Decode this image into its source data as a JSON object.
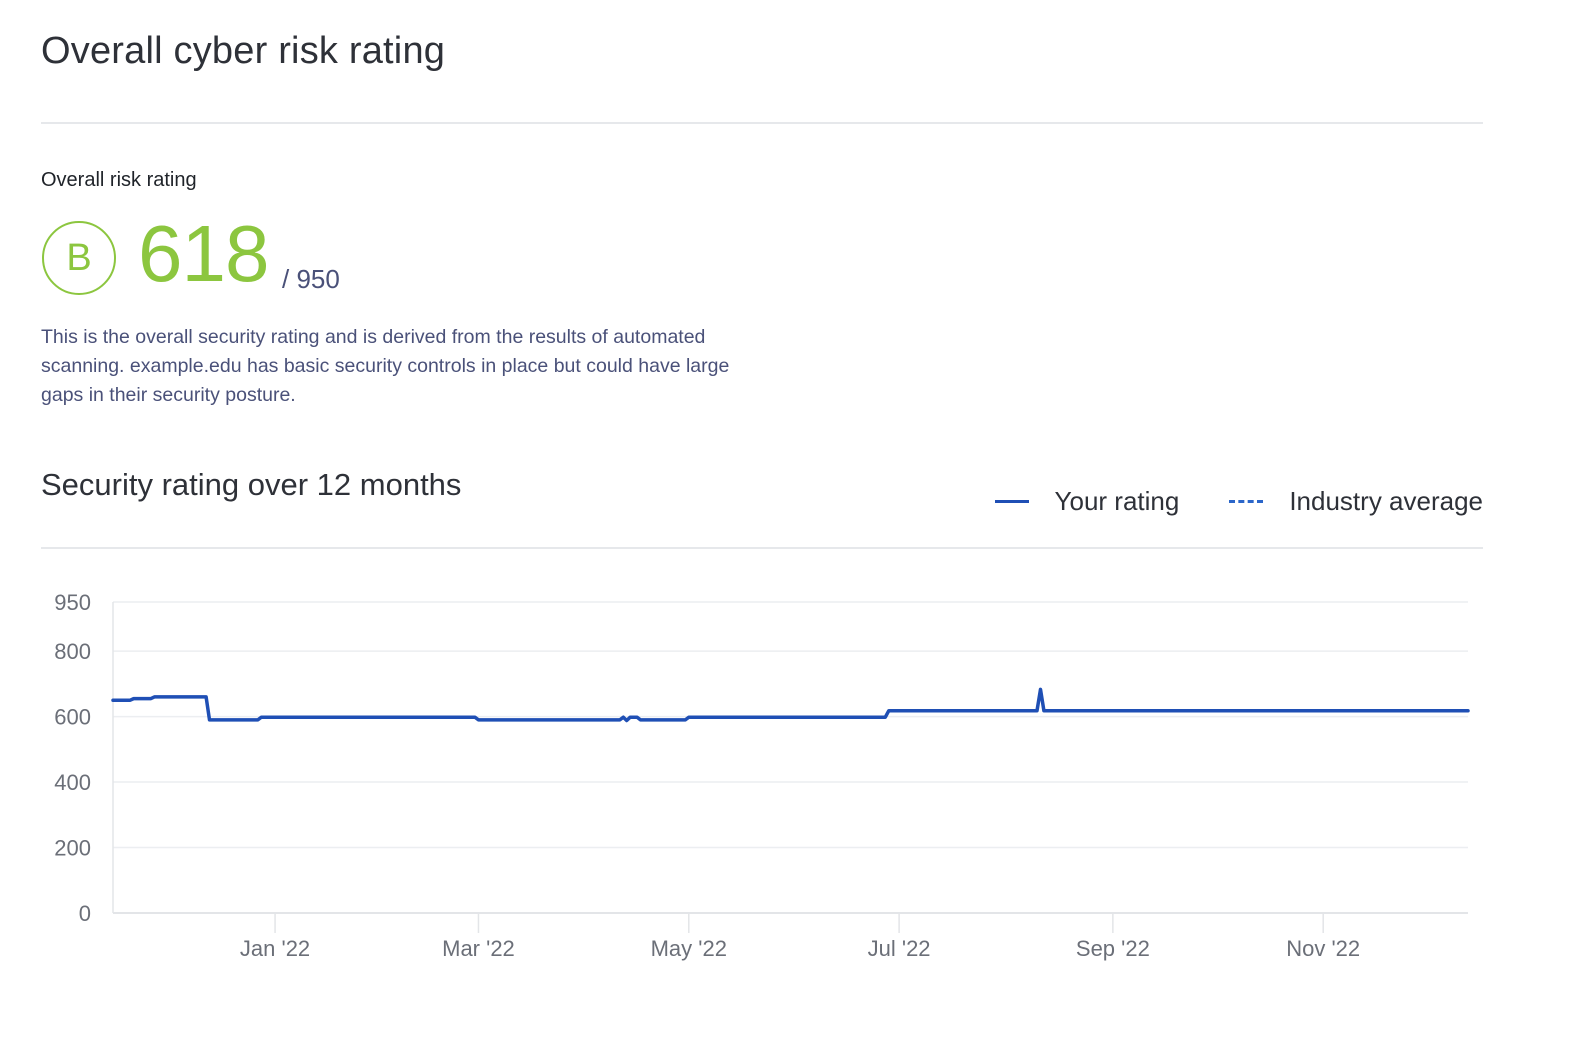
{
  "header": {
    "title": "Overall cyber risk rating"
  },
  "summary": {
    "label": "Overall risk rating",
    "grade": "B",
    "score": "618",
    "score_max": "/ 950",
    "description": "This is the overall security rating and is derived from the results of automated scanning. example.edu has basic security controls in place but could have large gaps in their security posture.",
    "accent_color": "#8cc63f"
  },
  "chart_section": {
    "title": "Security rating over 12 months",
    "legend": {
      "your_rating": "Your rating",
      "industry_average": "Industry average"
    }
  },
  "chart_data": {
    "type": "line",
    "title": "Security rating over 12 months",
    "xlabel": "",
    "ylabel": "",
    "ylim": [
      0,
      950
    ],
    "y_ticks": [
      0,
      200,
      400,
      600,
      800,
      950
    ],
    "y_tick_labels": [
      "0",
      "200",
      "400",
      "600",
      "800",
      "950"
    ],
    "x_range": [
      "2021-11-15",
      "2022-12-13"
    ],
    "x_ticks": [
      "2022-01-01",
      "2022-03-01",
      "2022-05-01",
      "2022-07-01",
      "2022-09-01",
      "2022-11-01"
    ],
    "x_tick_labels": [
      "Jan '22",
      "Mar '22",
      "May '22",
      "Jul '22",
      "Sep '22",
      "Nov '22"
    ],
    "grid": true,
    "legend_position": "top-right",
    "series": [
      {
        "name": "Your rating",
        "color": "#1f4fb5",
        "style": "solid",
        "points": [
          [
            "2021-11-15",
            650
          ],
          [
            "2021-11-20",
            650
          ],
          [
            "2021-11-21",
            655
          ],
          [
            "2021-11-26",
            655
          ],
          [
            "2021-11-27",
            660
          ],
          [
            "2021-12-12",
            660
          ],
          [
            "2021-12-13",
            590
          ],
          [
            "2021-12-27",
            590
          ],
          [
            "2021-12-28",
            598
          ],
          [
            "2022-02-28",
            598
          ],
          [
            "2022-03-01",
            590
          ],
          [
            "2022-04-11",
            590
          ],
          [
            "2022-04-12",
            598
          ],
          [
            "2022-04-13",
            588
          ],
          [
            "2022-04-14",
            598
          ],
          [
            "2022-04-16",
            598
          ],
          [
            "2022-04-17",
            590
          ],
          [
            "2022-04-30",
            590
          ],
          [
            "2022-05-01",
            598
          ],
          [
            "2022-06-27",
            598
          ],
          [
            "2022-06-28",
            618
          ],
          [
            "2022-08-10",
            618
          ],
          [
            "2022-08-11",
            683
          ],
          [
            "2022-08-12",
            618
          ],
          [
            "2022-12-13",
            618
          ]
        ]
      },
      {
        "name": "Industry average",
        "color": "#2b66c9",
        "style": "dashed",
        "points": []
      }
    ]
  }
}
